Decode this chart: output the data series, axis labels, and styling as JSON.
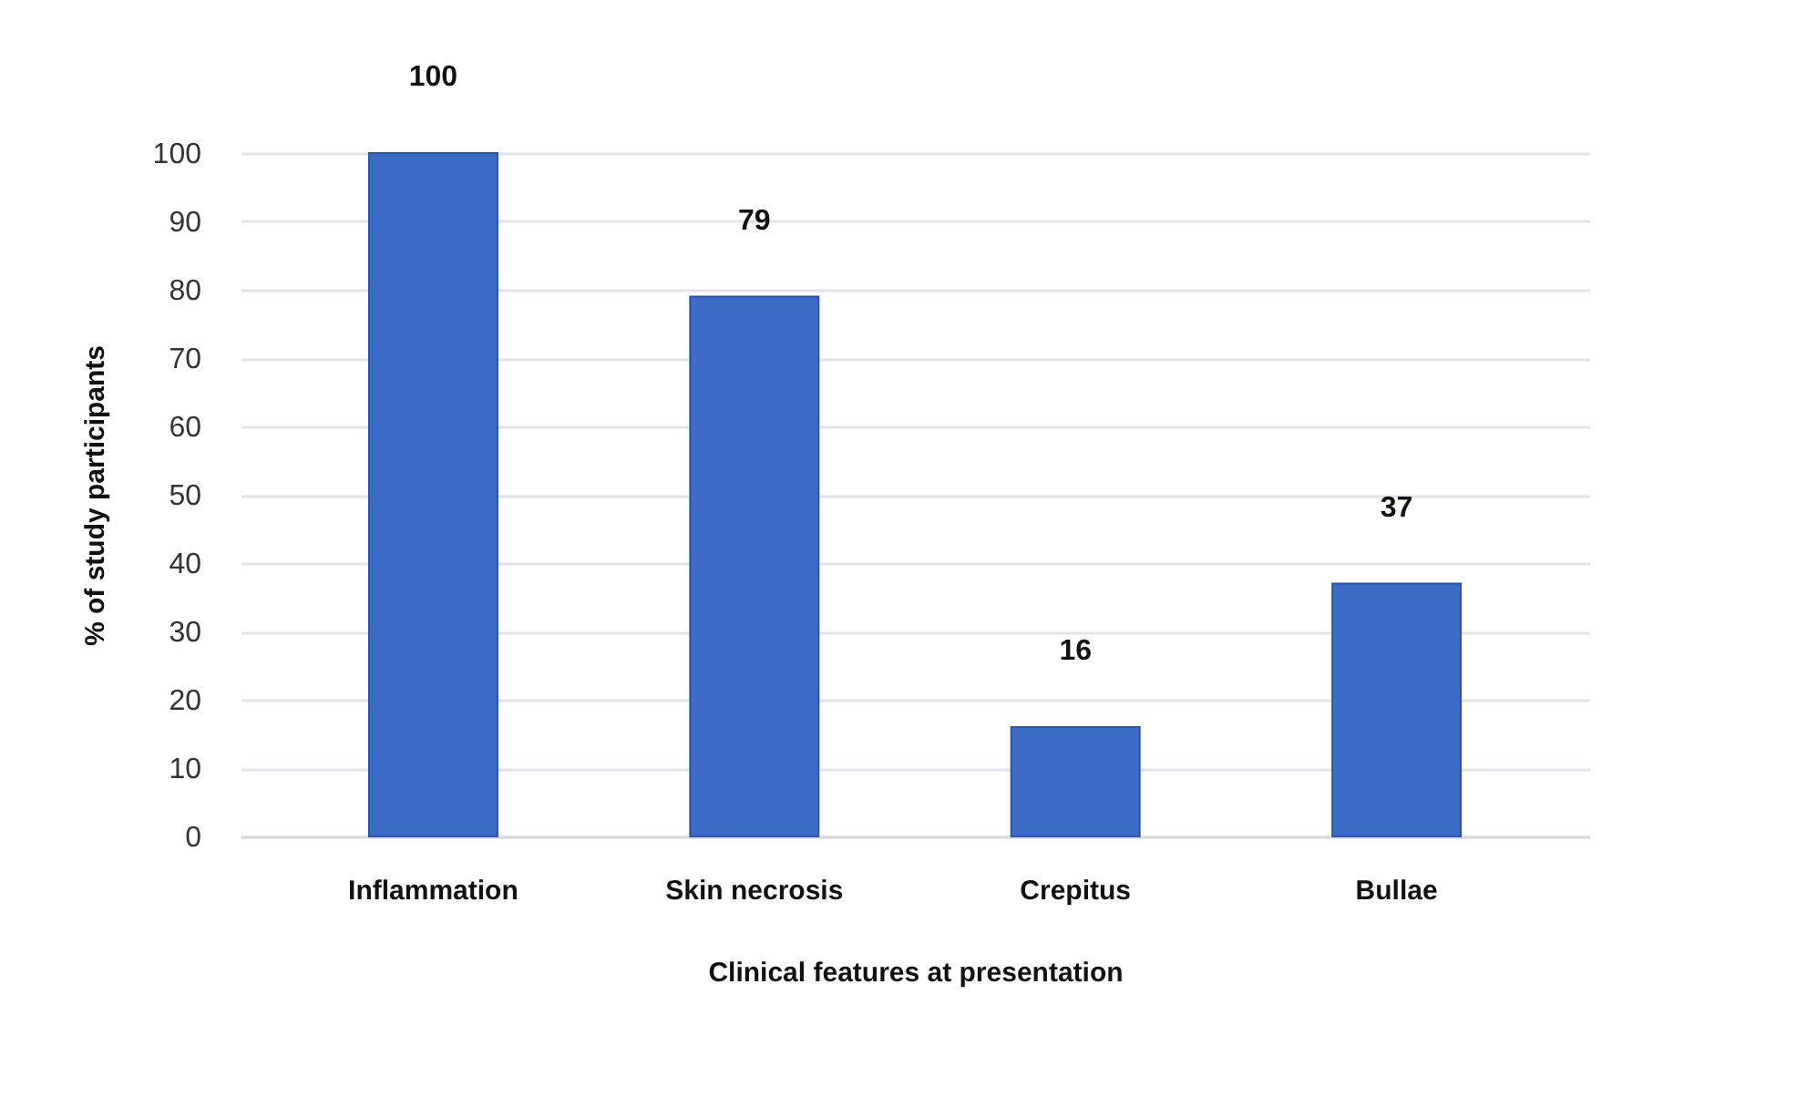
{
  "chart_data": {
    "type": "bar",
    "xlabel": "Clinical features at presentation",
    "ylabel": "% of study participants",
    "categories": [
      "Inflammation",
      "Skin necrosis",
      "Crepitus",
      "Bullae"
    ],
    "values": [
      100,
      79,
      16,
      37
    ],
    "color": "#3d6bc8",
    "ylim": [
      0,
      100
    ],
    "yticks": [
      0,
      10,
      20,
      30,
      40,
      50,
      60,
      70,
      80,
      90,
      100
    ],
    "grid": "y",
    "data_labels": true
  }
}
